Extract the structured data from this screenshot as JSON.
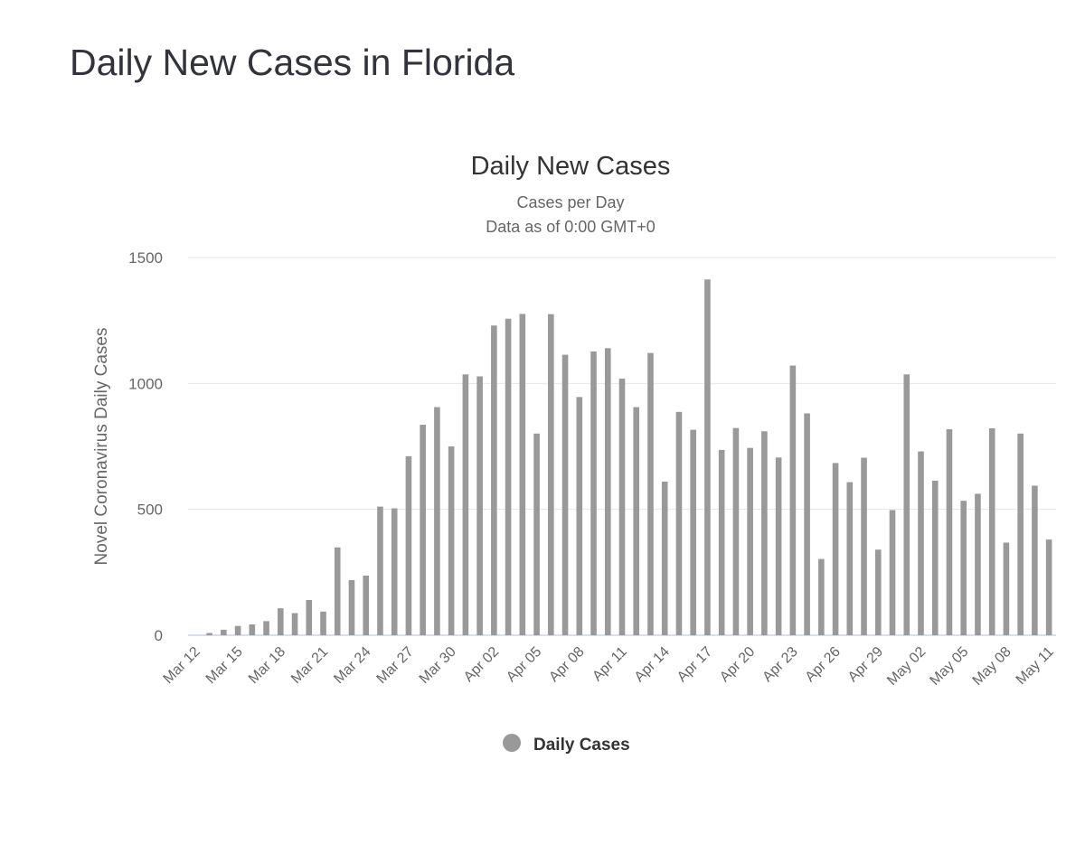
{
  "page": {
    "title": "Daily New Cases in Florida"
  },
  "chart_data": {
    "type": "bar",
    "title": "Daily New Cases",
    "subtitle": "Cases per Day",
    "subtitle2": "Data as of 0:00 GMT+0",
    "xlabel": "",
    "ylabel": "Novel Coronavirus Daily Cases",
    "ylim": [
      0,
      1500
    ],
    "yticks": [
      0,
      500,
      1000,
      1500
    ],
    "grid": true,
    "legend_position": "bottom",
    "bar_color": "#999999",
    "categories": [
      "Mar 12",
      "Mar 13",
      "Mar 14",
      "Mar 15",
      "Mar 16",
      "Mar 17",
      "Mar 18",
      "Mar 19",
      "Mar 20",
      "Mar 21",
      "Mar 22",
      "Mar 23",
      "Mar 24",
      "Mar 25",
      "Mar 26",
      "Mar 27",
      "Mar 28",
      "Mar 29",
      "Mar 30",
      "Mar 31",
      "Apr 01",
      "Apr 02",
      "Apr 03",
      "Apr 04",
      "Apr 05",
      "Apr 06",
      "Apr 07",
      "Apr 08",
      "Apr 09",
      "Apr 10",
      "Apr 11",
      "Apr 12",
      "Apr 13",
      "Apr 14",
      "Apr 15",
      "Apr 16",
      "Apr 17",
      "Apr 18",
      "Apr 19",
      "Apr 20",
      "Apr 21",
      "Apr 22",
      "Apr 23",
      "Apr 24",
      "Apr 25",
      "Apr 26",
      "Apr 27",
      "Apr 28",
      "Apr 29",
      "Apr 30",
      "May 01",
      "May 02",
      "May 03",
      "May 04",
      "May 05",
      "May 06",
      "May 07",
      "May 08",
      "May 09",
      "May 10",
      "May 11"
    ],
    "x_tick_labels": [
      "Mar 12",
      "Mar 15",
      "Mar 18",
      "Mar 21",
      "Mar 24",
      "Mar 27",
      "Mar 30",
      "Apr 02",
      "Apr 05",
      "Apr 08",
      "Apr 11",
      "Apr 14",
      "Apr 17",
      "Apr 20",
      "Apr 23",
      "Apr 26",
      "Apr 29",
      "May 02",
      "May 05",
      "May 08",
      "May 11"
    ],
    "series": [
      {
        "name": "Daily Cases",
        "values": [
          0,
          9,
          22,
          37,
          43,
          56,
          107,
          88,
          140,
          94,
          349,
          219,
          237,
          511,
          504,
          711,
          836,
          906,
          750,
          1036,
          1028,
          1230,
          1257,
          1276,
          801,
          1275,
          1114,
          946,
          1127,
          1140,
          1019,
          906,
          1121,
          610,
          887,
          816,
          1413,
          736,
          823,
          744,
          810,
          706,
          1071,
          881,
          303,
          684,
          608,
          705,
          340,
          497,
          1036,
          730,
          614,
          818,
          534,
          562,
          822,
          368,
          801,
          594,
          380
        ]
      }
    ]
  }
}
